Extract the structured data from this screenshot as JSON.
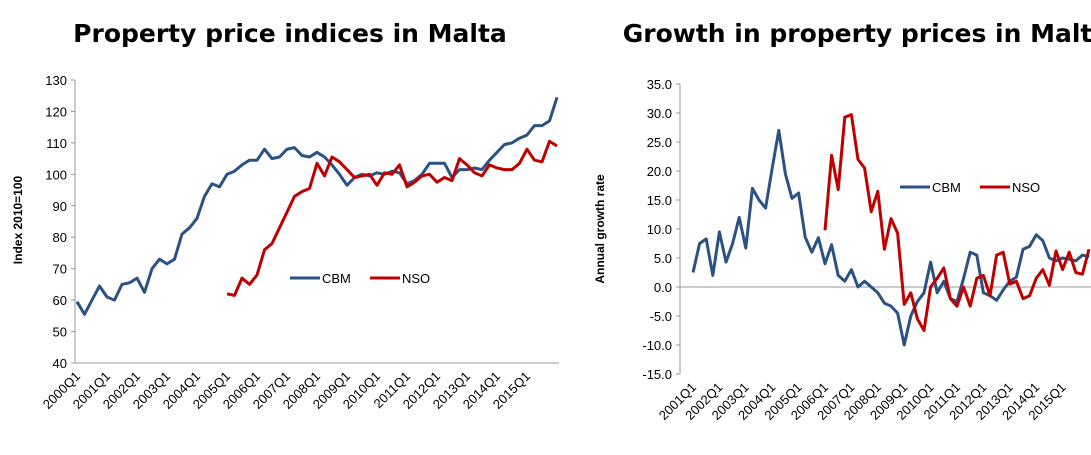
{
  "chart_data": [
    {
      "type": "line",
      "title": "Property price indices in Malta",
      "y_label": "Index 2010=100",
      "categories": [
        "2000Q1",
        null,
        null,
        null,
        "2001Q1",
        null,
        null,
        null,
        "2002Q1",
        null,
        null,
        null,
        "2003Q1",
        null,
        null,
        null,
        "2004Q1",
        null,
        null,
        null,
        "2005Q1",
        null,
        null,
        null,
        "2006Q1",
        null,
        null,
        null,
        "2007Q1",
        null,
        null,
        null,
        "2008Q1",
        null,
        null,
        null,
        "2009Q1",
        null,
        null,
        null,
        "2010Q1",
        null,
        null,
        null,
        "2011Q1",
        null,
        null,
        null,
        "2012Q1",
        null,
        null,
        null,
        "2013Q1",
        null,
        null,
        null,
        "2014Q1",
        null,
        null,
        null,
        "2015Q1",
        null,
        null,
        null,
        null
      ],
      "ylim": [
        40,
        130
      ],
      "yticks": [
        40,
        50,
        60,
        70,
        80,
        90,
        100,
        110,
        120,
        130
      ],
      "series": [
        {
          "name": "CBM",
          "color": "#2c5283",
          "values": [
            59.5,
            55.5,
            60,
            64.5,
            61,
            60,
            65,
            65.5,
            67,
            62.5,
            70,
            73,
            71.5,
            73,
            81,
            83,
            86,
            93,
            97,
            96,
            100,
            101,
            103,
            104.5,
            104.5,
            108,
            105,
            105.5,
            108,
            108.5,
            106,
            105.5,
            107,
            105.5,
            103,
            100,
            96.5,
            99,
            100,
            99.5,
            100.5,
            100,
            101,
            100.5,
            97,
            98,
            100,
            103.5,
            103.5,
            103.5,
            99,
            101.5,
            101.5,
            102,
            101.5,
            104.5,
            107,
            109.5,
            110,
            111.5,
            112.5,
            115.5,
            115.5,
            117,
            124.5
          ]
        },
        {
          "name": "NSO",
          "color": "#c00000",
          "values": [
            null,
            null,
            null,
            null,
            null,
            null,
            null,
            null,
            null,
            null,
            null,
            null,
            null,
            null,
            null,
            null,
            null,
            null,
            null,
            null,
            62,
            61.5,
            67,
            65,
            68,
            76,
            78,
            83,
            88,
            93,
            94.5,
            95.5,
            103.5,
            99.5,
            105.5,
            104,
            101.5,
            99,
            99.5,
            100,
            96.5,
            100.5,
            100,
            103,
            96,
            97.5,
            99.5,
            100,
            97.5,
            99,
            98,
            105,
            103,
            100.5,
            99.5,
            103,
            102,
            101.5,
            101.5,
            103.5,
            108,
            104.5,
            104,
            110.5,
            109
          ]
        }
      ]
    },
    {
      "type": "line",
      "title": "Growth in property prices in Malta",
      "y_label": "Annual growth rate",
      "categories": [
        "2001Q1",
        null,
        null,
        null,
        "2002Q1",
        null,
        null,
        null,
        "2003Q1",
        null,
        null,
        null,
        "2004Q1",
        null,
        null,
        null,
        "2005Q1",
        null,
        null,
        null,
        "2006Q1",
        null,
        null,
        null,
        "2007Q1",
        null,
        null,
        null,
        "2008Q1",
        null,
        null,
        null,
        "2009Q1",
        null,
        null,
        null,
        "2010Q1",
        null,
        null,
        null,
        "2011Q1",
        null,
        null,
        null,
        "2012Q1",
        null,
        null,
        null,
        "2013Q1",
        null,
        null,
        null,
        "2014Q1",
        null,
        null,
        null,
        "2015Q1",
        null,
        null,
        null,
        null
      ],
      "ylim": [
        -15,
        35
      ],
      "yticks": [
        {
          "value": -15,
          "label": "-15.0"
        },
        {
          "value": -10,
          "label": "-10.0"
        },
        {
          "value": -5,
          "label": "-5.0"
        },
        {
          "value": 0,
          "label": "0.0"
        },
        {
          "value": 5,
          "label": "5.0"
        },
        {
          "value": 10,
          "label": "10.0"
        },
        {
          "value": 15,
          "label": "15.0"
        },
        {
          "value": 20,
          "label": "20.0"
        },
        {
          "value": 25,
          "label": "25.0"
        },
        {
          "value": 30,
          "label": "30.0"
        },
        {
          "value": 35,
          "label": "35.0"
        }
      ],
      "series": [
        {
          "name": "CBM",
          "color": "#2c5283",
          "values": [
            2.5,
            7.5,
            8.3,
            2,
            9.5,
            4.3,
            7.5,
            12,
            6.7,
            17,
            15,
            13.6,
            20.5,
            27,
            19.5,
            15.3,
            16.2,
            8.6,
            6,
            8.5,
            4,
            7.3,
            2,
            1,
            3,
            0,
            1,
            0,
            -1,
            -2.8,
            -3.3,
            -4.5,
            -10,
            -5,
            -2.5,
            -1,
            4.3,
            -1,
            1,
            -2,
            -2.5,
            1.5,
            6,
            5.5,
            -1,
            -1.5,
            -2.3,
            -0.5,
            1,
            1.7,
            6.5,
            7,
            9,
            8,
            5,
            4.5,
            5,
            4.8,
            4.5,
            5.5,
            5.2
          ]
        },
        {
          "name": "NSO",
          "color": "#c00000",
          "values": [
            null,
            null,
            null,
            null,
            null,
            null,
            null,
            null,
            null,
            null,
            null,
            null,
            null,
            null,
            null,
            null,
            null,
            null,
            null,
            null,
            9.8,
            22.7,
            16.8,
            29.3,
            29.7,
            22,
            20.5,
            13,
            16.5,
            6.5,
            11.8,
            9.3,
            -3,
            -1,
            -5.5,
            -7.5,
            0,
            1.5,
            3.3,
            -2,
            -3.3,
            0,
            -3.3,
            1.5,
            2,
            -1.5,
            5.5,
            6,
            0.5,
            1,
            -2,
            -1.5,
            1.5,
            3,
            0.3,
            6.2,
            3,
            6,
            2.5,
            2.2,
            6.5
          ]
        }
      ]
    }
  ]
}
